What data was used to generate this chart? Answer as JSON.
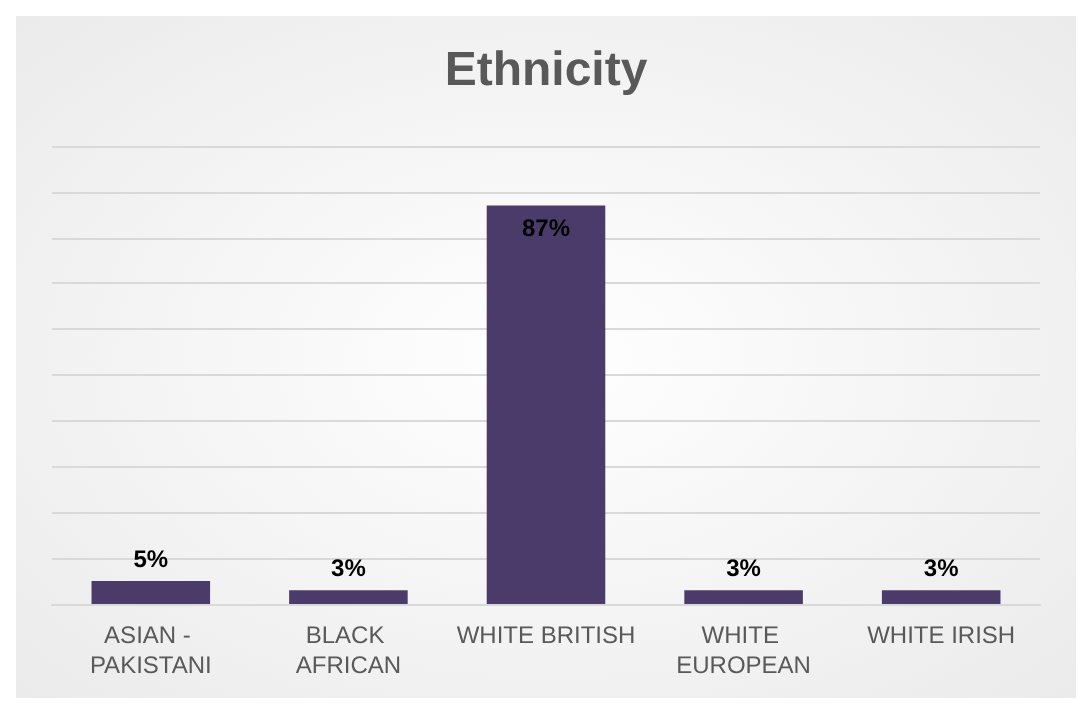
{
  "chart_data": {
    "type": "bar",
    "title": "Ethnicity",
    "categories": [
      "ASIAN - PAKISTANI",
      "BLACK AFRICAN",
      "WHITE BRITISH",
      "WHITE EUROPEAN",
      "WHITE IRISH"
    ],
    "values": [
      5,
      3,
      87,
      3,
      3
    ],
    "color": "#4b3b6b",
    "value_labels": [
      "5%",
      "3%",
      "87%",
      "3%",
      "3%"
    ],
    "ylim": [
      0,
      100
    ],
    "yticks": [
      {
        "value": 0,
        "label": null
      },
      {
        "value": 10,
        "label": null
      },
      {
        "value": 20,
        "label": null
      },
      {
        "value": 30,
        "label": null
      },
      {
        "value": 40,
        "label": null
      },
      {
        "value": 50,
        "label": null
      },
      {
        "value": 60,
        "label": null
      },
      {
        "value": 70,
        "label": null
      },
      {
        "value": 80,
        "label": null
      },
      {
        "value": 90,
        "label": null
      },
      {
        "value": 100,
        "label": null
      }
    ],
    "grid": true,
    "tick_labels": "x"
  }
}
